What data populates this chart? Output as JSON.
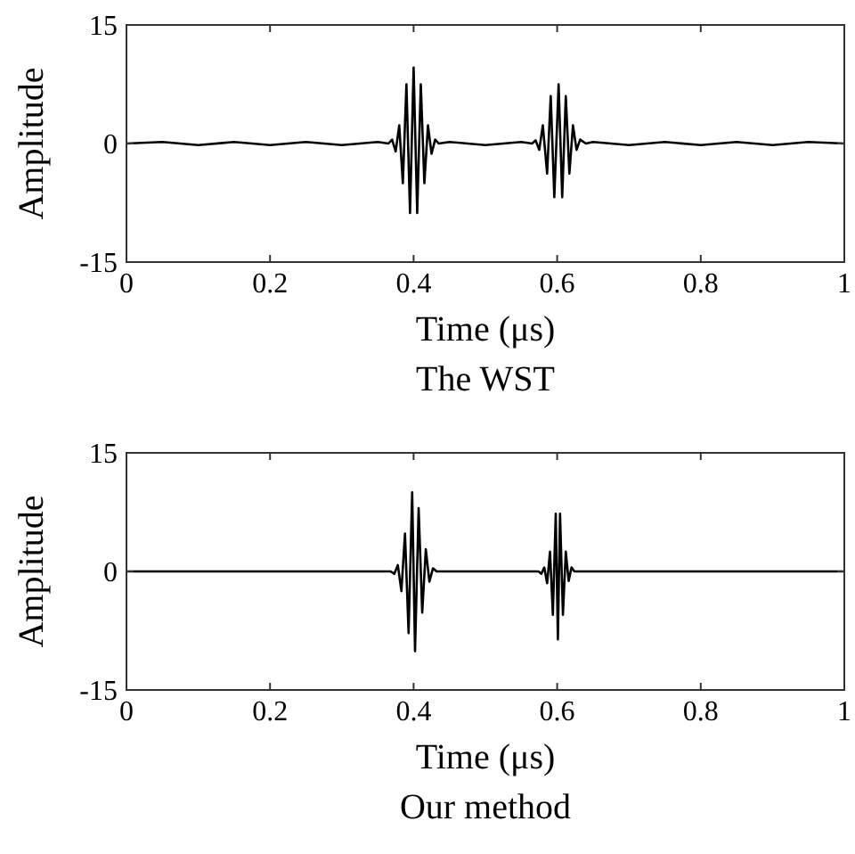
{
  "chart_data": [
    {
      "type": "line",
      "title": "The WST",
      "xlabel": "Time (μs)",
      "ylabel": "Amplitude",
      "xlim": [
        0,
        1
      ],
      "ylim": [
        -15,
        15
      ],
      "xticks": [
        0,
        0.2,
        0.4,
        0.6,
        0.8,
        1
      ],
      "yticks": [
        -15,
        0,
        15
      ],
      "grid": false,
      "series": [
        {
          "color": "#000000",
          "x": [
            0,
            0.05,
            0.1,
            0.15,
            0.2,
            0.25,
            0.3,
            0.35,
            0.365,
            0.37,
            0.375,
            0.38,
            0.385,
            0.39,
            0.395,
            0.4,
            0.405,
            0.41,
            0.415,
            0.42,
            0.425,
            0.43,
            0.435,
            0.45,
            0.5,
            0.55,
            0.565,
            0.57,
            0.575,
            0.58,
            0.586,
            0.591,
            0.596,
            0.602,
            0.607,
            0.612,
            0.617,
            0.622,
            0.627,
            0.632,
            0.64,
            0.65,
            0.7,
            0.75,
            0.8,
            0.85,
            0.9,
            0.95,
            1
          ],
          "values": [
            0,
            0.2,
            -0.2,
            0.2,
            -0.2,
            0.2,
            -0.2,
            0.2,
            0,
            0.5,
            -1.0,
            2.3,
            -5.0,
            7.5,
            -8.8,
            9.6,
            -8.8,
            7.5,
            -5.0,
            2.3,
            -1.3,
            0.5,
            0,
            0.2,
            -0.2,
            0.2,
            0,
            0.4,
            -0.8,
            2.3,
            -3.8,
            6,
            -6.8,
            7.5,
            -6.8,
            6,
            -3.8,
            2.3,
            -0.8,
            0.5,
            0,
            0.2,
            -0.2,
            0.2,
            -0.2,
            0.2,
            -0.2,
            0.2,
            0
          ]
        }
      ]
    },
    {
      "type": "line",
      "title": "Our method",
      "xlabel": "Time (μs)",
      "ylabel": "Amplitude",
      "xlim": [
        0,
        1
      ],
      "ylim": [
        -15,
        15
      ],
      "xticks": [
        0,
        0.2,
        0.4,
        0.6,
        0.8,
        1
      ],
      "yticks": [
        -15,
        0,
        15
      ],
      "grid": false,
      "series": [
        {
          "color": "#000000",
          "x": [
            0,
            0.368,
            0.373,
            0.378,
            0.383,
            0.388,
            0.393,
            0.398,
            0.402,
            0.407,
            0.412,
            0.417,
            0.422,
            0.427,
            0.432,
            0.574,
            0.578,
            0.582,
            0.586,
            0.59,
            0.594,
            0.598,
            0.601,
            0.604,
            0.608,
            0.612,
            0.616,
            0.62,
            0.624,
            1
          ],
          "values": [
            0,
            0,
            -0.3,
            0.8,
            -2.5,
            4.8,
            -7.8,
            10,
            -10.1,
            8,
            -5.2,
            2.8,
            -1.3,
            0.4,
            0,
            0,
            -0.3,
            0.5,
            -1.5,
            2.5,
            -5.5,
            7.3,
            -8.6,
            7.3,
            -5.5,
            2.5,
            -1.2,
            0.5,
            0,
            0
          ]
        }
      ]
    }
  ]
}
